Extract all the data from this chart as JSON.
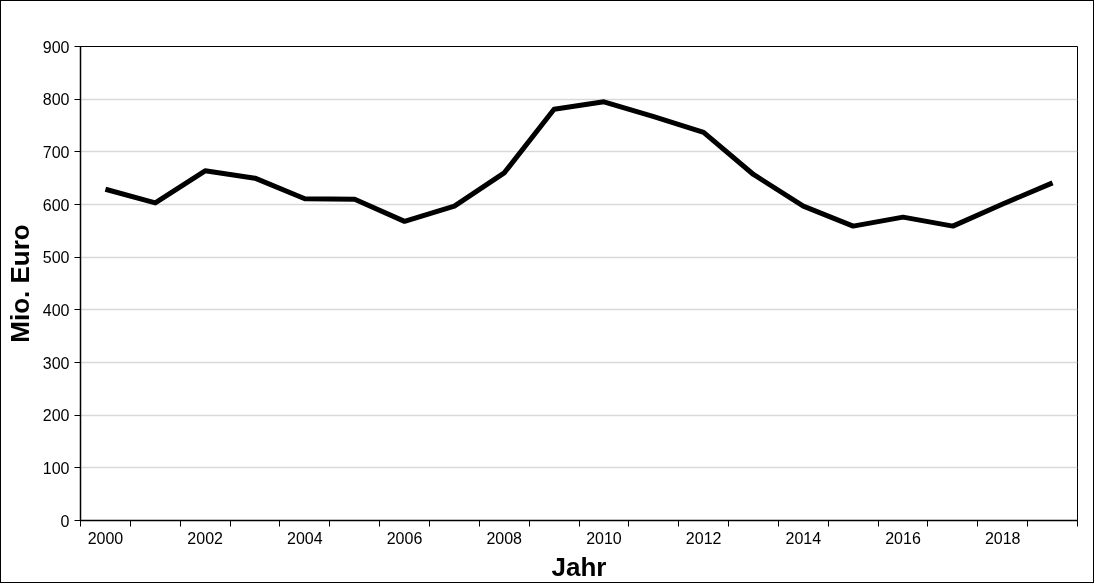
{
  "chart_data": {
    "type": "line",
    "xlabel": "Jahr",
    "ylabel": "Mio. Euro",
    "categories": [
      "2000",
      null,
      "2002",
      null,
      "2004",
      null,
      "2006",
      null,
      "2008",
      null,
      "2010",
      null,
      "2012",
      null,
      "2014",
      null,
      "2016",
      null,
      "2018",
      null
    ],
    "series": [
      {
        "color": "#000000",
        "values": [
          629,
          603,
          664,
          650,
          611,
          610,
          568,
          597,
          660,
          781,
          795,
          767,
          737,
          657,
          597,
          559,
          576,
          559,
          601,
          641
        ]
      }
    ],
    "ylim": [
      0,
      900
    ],
    "yticks": [
      0,
      100,
      200,
      300,
      400,
      500,
      600,
      700,
      800,
      900
    ],
    "grid": "y",
    "marker": "none",
    "line_style": "solid"
  }
}
